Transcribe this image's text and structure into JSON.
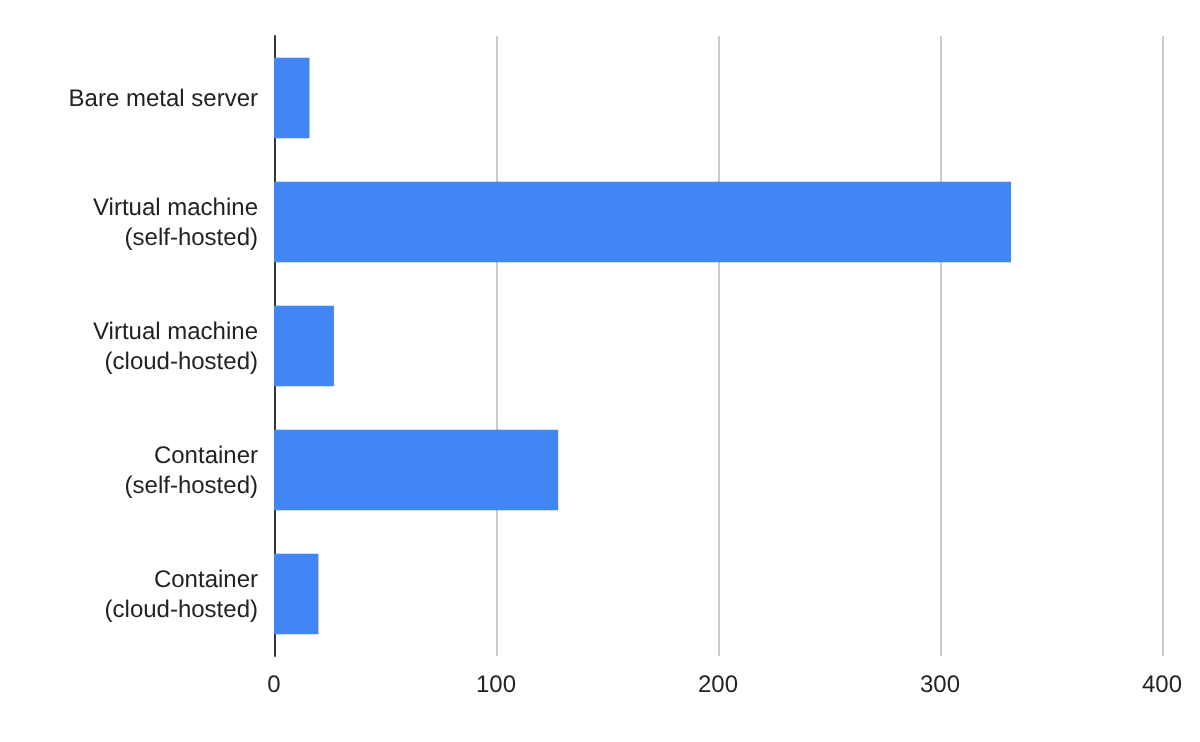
{
  "chart_data": {
    "type": "bar",
    "orientation": "horizontal",
    "categories": [
      "Bare metal server",
      "Virtual machine (self-hosted)",
      "Virtual machine (cloud-hosted)",
      "Container (self-hosted)",
      "Container (cloud-hosted)"
    ],
    "values": [
      16,
      332,
      27,
      128,
      20
    ],
    "color": "#4285f4",
    "xlim": [
      0,
      400
    ],
    "xticks": [
      0,
      100,
      200,
      300,
      400
    ],
    "grid": "x"
  }
}
